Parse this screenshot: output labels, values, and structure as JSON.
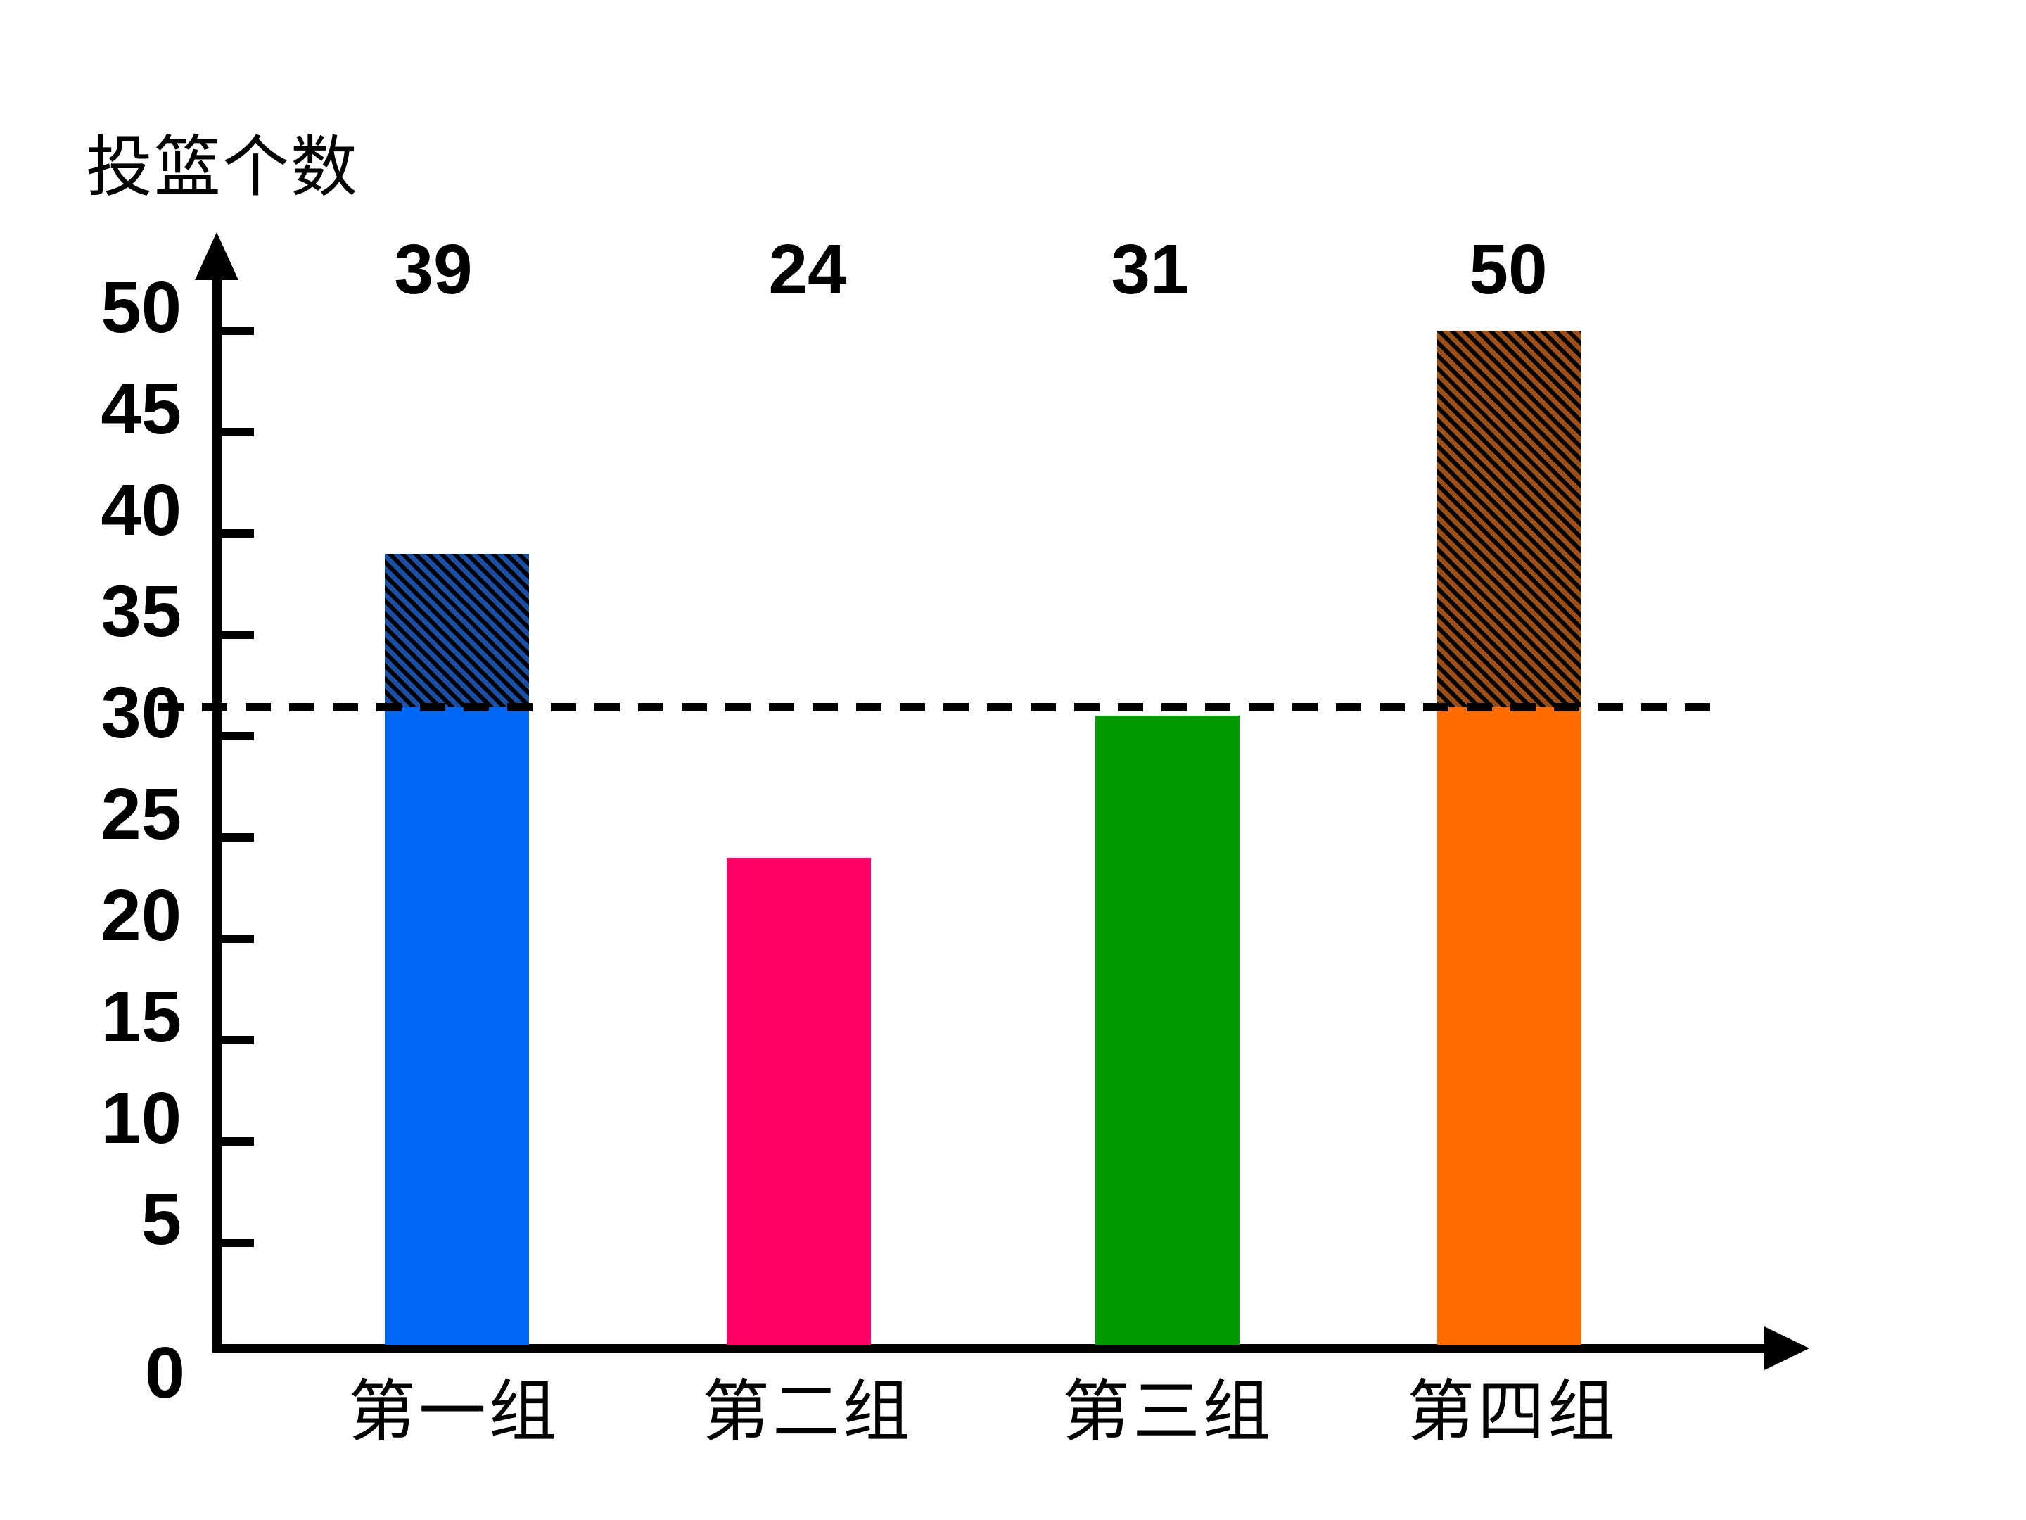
{
  "title": "投篮个数",
  "chart_data": {
    "type": "bar",
    "title": "投篮个数",
    "xlabel": "",
    "ylabel": "投篮个数",
    "categories": [
      "第一组",
      "第二组",
      "第三组",
      "第四组"
    ],
    "values": [
      39,
      24,
      31,
      50
    ],
    "value_labels": [
      "39",
      "24",
      "31",
      "50"
    ],
    "zero_label": "0",
    "y_ticks": [
      0,
      5,
      10,
      15,
      20,
      25,
      30,
      35,
      40,
      45,
      50
    ],
    "ylim": [
      0,
      50
    ],
    "grid": false,
    "legend": null,
    "dashed_reference_line": 31.5,
    "bars": [
      {
        "category": "第一组",
        "value": 39,
        "color": "#0066F5",
        "hatched_above_line": true,
        "hatch_base_color": "#1B4FA5"
      },
      {
        "category": "第二组",
        "value": 24,
        "color": "#FF0066",
        "hatched_above_line": false,
        "hatch_base_color": null
      },
      {
        "category": "第三组",
        "value": 31,
        "color": "#009900",
        "hatched_above_line": false,
        "hatch_base_color": null
      },
      {
        "category": "第四组",
        "value": 50,
        "color": "#FF6D00",
        "hatched_above_line": true,
        "hatch_base_color": "#9C5018"
      }
    ]
  },
  "colors": {
    "background": "#FFFFFF",
    "axis": "#000000",
    "dashed_line": "#000000",
    "hatch_stripe": "#000000",
    "text": "#000000"
  }
}
